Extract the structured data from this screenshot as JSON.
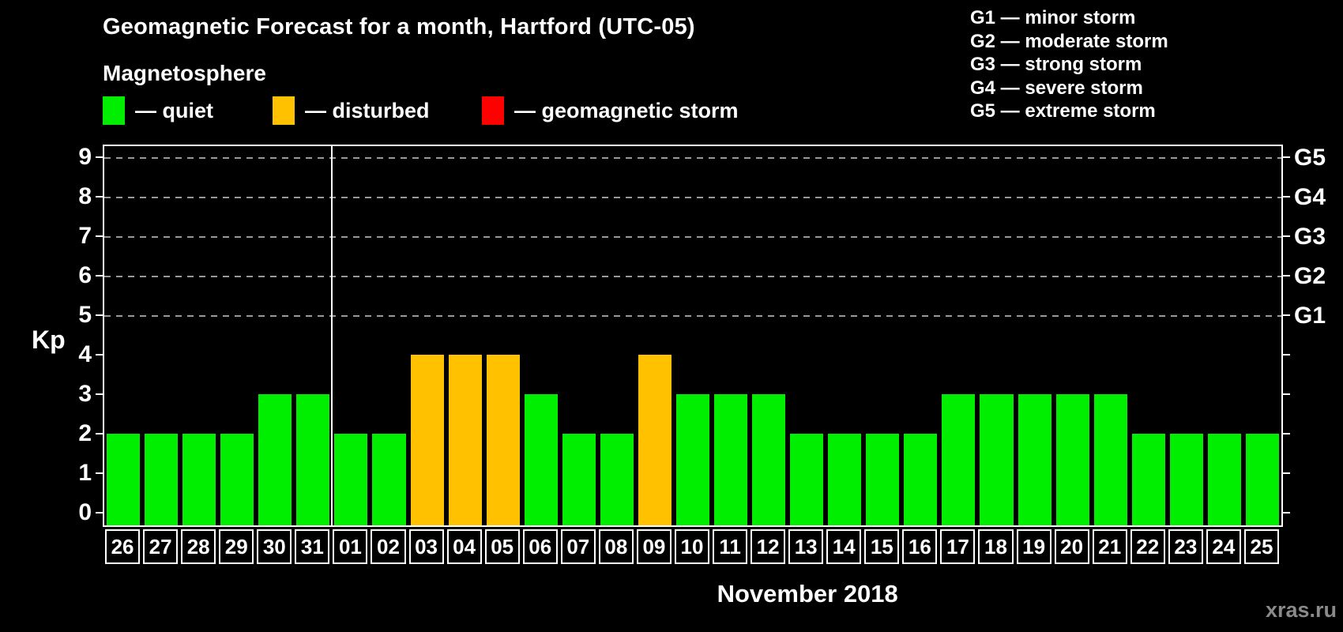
{
  "header": {
    "title": "Geomagnetic Forecast for a month, Hartford (UTC-05)",
    "subtitle": "Magnetosphere"
  },
  "legend": {
    "items": [
      {
        "name": "quiet",
        "label": "— quiet",
        "color": "#00EE00"
      },
      {
        "name": "disturbed",
        "label": "— disturbed",
        "color": "#FFC100"
      },
      {
        "name": "storm",
        "label": "— geomagnetic storm",
        "color": "#FF0000"
      }
    ]
  },
  "storm_scale": {
    "items": [
      {
        "code": "G1",
        "label": "— minor storm",
        "kp": 5
      },
      {
        "code": "G2",
        "label": "— moderate storm",
        "kp": 6
      },
      {
        "code": "G3",
        "label": "— strong storm",
        "kp": 7
      },
      {
        "code": "G4",
        "label": "— severe storm",
        "kp": 8
      },
      {
        "code": "G5",
        "label": "— extreme storm",
        "kp": 9
      }
    ]
  },
  "chart_data": {
    "type": "bar",
    "title": "Geomagnetic Forecast for a month, Hartford (UTC-05)",
    "ylabel": "Kp",
    "xlabel": "November 2018",
    "ylim": [
      0,
      9
    ],
    "yticks": [
      0,
      1,
      2,
      3,
      4,
      5,
      6,
      7,
      8,
      9
    ],
    "grid": "dashed horizontal lines at Kp 5,6,7,8,9 only",
    "legend_position": "top-left",
    "right_axis": "storm scale G1..G5 mapped to Kp 5..9",
    "categories": [
      "26",
      "27",
      "28",
      "29",
      "30",
      "31",
      "01",
      "02",
      "03",
      "04",
      "05",
      "06",
      "07",
      "08",
      "09",
      "10",
      "11",
      "12",
      "13",
      "14",
      "15",
      "16",
      "17",
      "18",
      "19",
      "20",
      "21",
      "22",
      "23",
      "24",
      "25"
    ],
    "values": [
      2,
      2,
      2,
      2,
      3,
      3,
      2,
      2,
      4,
      4,
      4,
      3,
      2,
      2,
      4,
      3,
      3,
      3,
      2,
      2,
      2,
      2,
      3,
      3,
      3,
      3,
      3,
      2,
      2,
      2,
      2
    ],
    "month_separator_after_index": 5,
    "color_rules": {
      "quiet_kp_max": 3,
      "disturbed_kp_max": 4,
      "storm_kp_min": 5
    }
  },
  "footer": {
    "month_label": "November 2018",
    "watermark": "xras.ru"
  },
  "colors": {
    "background": "#000000",
    "axis": "#FFFFFF",
    "grid": "#999999",
    "quiet": "#00EE00",
    "disturbed": "#FFC100",
    "storm": "#FF0000",
    "watermark": "#8A8A8A"
  }
}
